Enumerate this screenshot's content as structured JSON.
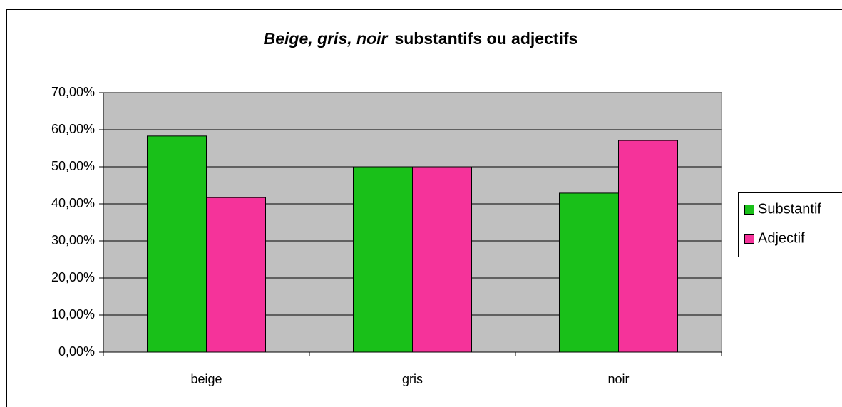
{
  "chart_data": {
    "type": "bar",
    "title": [
      "Beige, gris, noir",
      "substantifs ou adjectifs"
    ],
    "categories": [
      "beige",
      "gris",
      "noir"
    ],
    "series": [
      {
        "name": "Substantif",
        "color": "#19c019",
        "values": [
          58.3,
          50,
          42.9
        ]
      },
      {
        "name": "Adjectif",
        "color": "#f5339a",
        "values": [
          41.7,
          50,
          57.1
        ]
      }
    ],
    "ylim": [
      0,
      70
    ],
    "yticks": [
      {
        "value": 0,
        "label": "0,00%"
      },
      {
        "value": 10,
        "label": "10,00%"
      },
      {
        "value": 20,
        "label": "20,00%"
      },
      {
        "value": 30,
        "label": "30,00%"
      },
      {
        "value": 40,
        "label": "40,00%"
      },
      {
        "value": 50,
        "label": "50,00%"
      },
      {
        "value": 60,
        "label": "60,00%"
      },
      {
        "value": 70,
        "label": "70,00%"
      }
    ],
    "grid": true,
    "legend": "right",
    "plot_background": "#c0c0c0"
  }
}
